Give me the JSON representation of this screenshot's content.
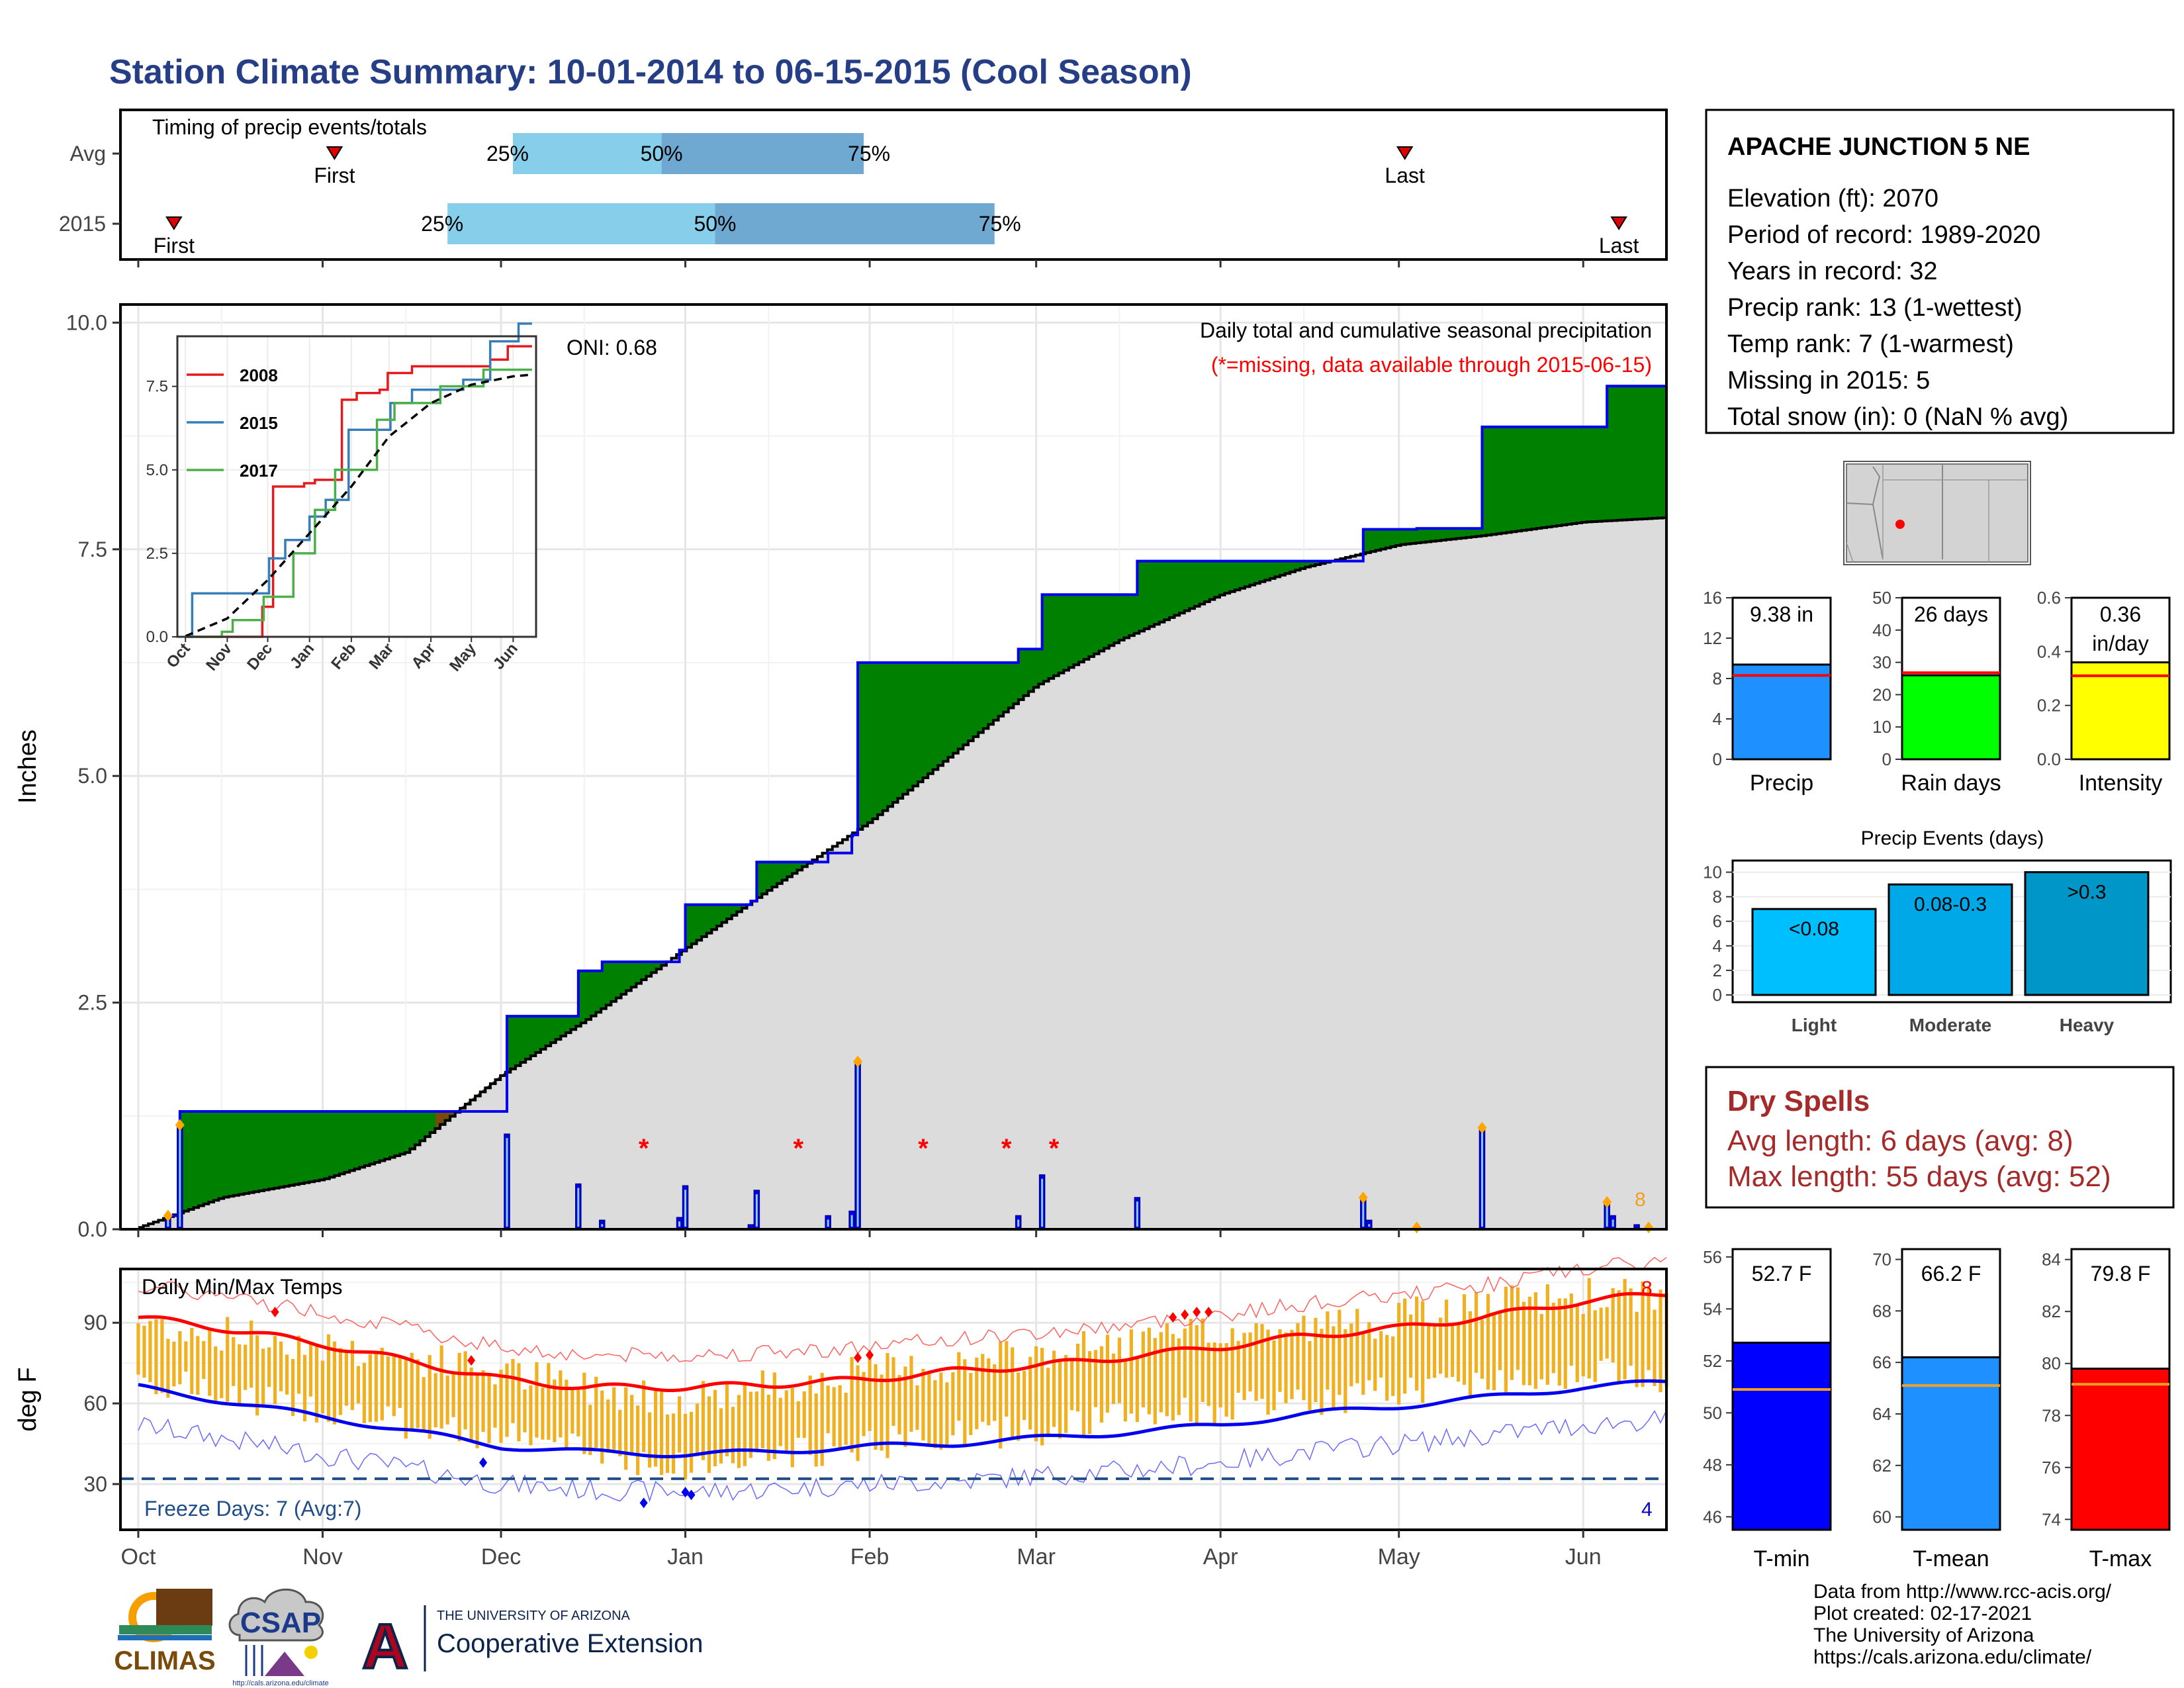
{
  "title": "Station Climate Summary: 10-01-2014 to 06-15-2015 (Cool Season)",
  "colors": {
    "title": "#263e85",
    "green": "#008000",
    "brown": "#7a4a0a",
    "blue_line": "#0000ee",
    "grey_fill": "#dcdcdc",
    "light_blue": "#87ceeb",
    "mid_blue": "#6fa8d0",
    "red": "#ff0000",
    "orange": "#f0b020",
    "precip_bar": "#1e90ff",
    "rain_bar": "#00ff00",
    "intensity_bar": "#ffff00",
    "event_light": "#00bfff",
    "event_moderate": "#00a8e8",
    "event_heavy": "#0096c7",
    "dry_red": "#a52a2a",
    "tmin": "#0000ff",
    "tmean": "#1e90ff",
    "tmax": "#ff0000"
  },
  "timing": {
    "label": "Timing of precip events/totals",
    "rows": [
      {
        "label": "Avg",
        "first_date": "2014-11-03",
        "last_date": "2015-05-02",
        "q25_date": "2014-12-03",
        "q50_date": "2014-12-28",
        "q75_date": "2015-01-31",
        "q25_label": "25%",
        "q50_label": "50%",
        "q75_label": "75%",
        "first_label": "First",
        "last_label": "Last"
      },
      {
        "label": "2015",
        "first_date": "2014-10-07",
        "last_date": "2015-06-07",
        "q25_date": "2014-11-22",
        "q50_date": "2015-01-06",
        "q75_date": "2015-02-22",
        "q25_label": "25%",
        "q50_label": "50%",
        "q75_label": "75%",
        "first_label": "First",
        "last_label": "Last"
      }
    ]
  },
  "station": {
    "name": "APACHE JUNCTION 5 NE",
    "lines": [
      "Elevation (ft): 2070",
      "Period of record: 1989-2020",
      "Years in record: 32",
      "Precip rank: 13 (1-wettest)",
      "Temp rank: 7 (1-warmest)",
      "Missing in 2015: 5",
      "Total snow (in): 0 (NaN % avg)"
    ]
  },
  "precip_panel": {
    "ylabel": "Inches",
    "oni": "ONI: 0.68",
    "note1": "Daily total and cumulative seasonal precipitation",
    "note2": "(*=missing, data available through 2015-06-15)",
    "orange_count": "8"
  },
  "inset": {
    "legend": [
      "2008",
      "2015",
      "2017"
    ]
  },
  "summary_bars": [
    {
      "name": "Precip",
      "value_label": "9.38 in",
      "value": 9.38,
      "avg": 8.3,
      "yticks": [
        0,
        4,
        8,
        12,
        16
      ],
      "ymax": 16
    },
    {
      "name": "Rain days",
      "value_label": "26 days",
      "value": 26,
      "avg": 26.8,
      "yticks": [
        0,
        10,
        20,
        30,
        40,
        50
      ],
      "ymax": 50
    },
    {
      "name": "Intensity",
      "value_label": "0.36",
      "value_label2": "in/day",
      "value": 0.36,
      "avg": 0.31,
      "yticks": [
        0.0,
        0.2,
        0.4,
        0.6
      ],
      "ymax": 0.6
    }
  ],
  "events": {
    "title": "Precip Events (days)",
    "bars": [
      {
        "label": "<0.08",
        "category": "Light",
        "value": 7
      },
      {
        "label": "0.08-0.3",
        "category": "Moderate",
        "value": 9
      },
      {
        "label": ">0.3",
        "category": "Heavy",
        "value": 10
      }
    ],
    "yticks": [
      0,
      2,
      4,
      6,
      8,
      10
    ]
  },
  "dry_spells": {
    "title": "Dry Spells",
    "avg": "Avg length: 6 days (avg: 8)",
    "max": "Max length: 55 days (avg: 52)"
  },
  "temp_panel": {
    "label": "Daily Min/Max Temps",
    "ylabel": "deg F",
    "freeze": "Freeze Days: 7 (Avg:7)",
    "count_hot": "8",
    "count_cold": "4",
    "yticks": [
      30,
      60,
      90
    ]
  },
  "temp_bars": [
    {
      "name": "T-min",
      "value_label": "52.7 F",
      "value": 52.7,
      "avg": 50.9,
      "ymin": 45.5,
      "ymax": 56.3,
      "yticks": [
        46,
        48,
        50,
        52,
        54,
        56
      ]
    },
    {
      "name": "T-mean",
      "value_label": "66.2 F",
      "value": 66.2,
      "avg": 65.1,
      "ymin": 59.5,
      "ymax": 70.4,
      "yticks": [
        60,
        62,
        64,
        66,
        68,
        70
      ]
    },
    {
      "name": "T-max",
      "value_label": "79.8 F",
      "value": 79.8,
      "avg": 79.2,
      "ymin": 73.6,
      "ymax": 84.4,
      "yticks": [
        74,
        76,
        78,
        80,
        82,
        84
      ]
    }
  ],
  "months": [
    "Oct",
    "Nov",
    "Dec",
    "Jan",
    "Feb",
    "Mar",
    "Apr",
    "May",
    "Jun"
  ],
  "logos": {
    "climas": "CLIMAS",
    "csap": "CSAP",
    "csap_url": "http://cals.arizona.edu/climate",
    "ua_small": "THE UNIVERSITY OF ARIZONA",
    "ua_big": "Cooperative Extension",
    "ua_letter": "A"
  },
  "footer": [
    "Data from http://www.rcc-acis.org/",
    "Plot created: 02-17-2021",
    "The University of Arizona",
    "https://cals.arizona.edu/climate/"
  ],
  "chart_data": [
    {
      "type": "area",
      "title": "Daily total and cumulative seasonal precipitation",
      "ylabel": "Inches",
      "ylim": [
        0,
        10.2
      ],
      "cumulative_2015": [
        [
          "2014-10-01",
          0.0
        ],
        [
          "2014-10-06",
          0.15
        ],
        [
          "2014-10-08",
          1.3
        ],
        [
          "2014-12-01",
          1.3
        ],
        [
          "2014-12-02",
          2.35
        ],
        [
          "2014-12-14",
          2.85
        ],
        [
          "2014-12-18",
          2.95
        ],
        [
          "2014-12-31",
          3.08
        ],
        [
          "2015-01-01",
          3.58
        ],
        [
          "2015-01-12",
          3.62
        ],
        [
          "2015-01-13",
          4.05
        ],
        [
          "2015-01-25",
          4.15
        ],
        [
          "2015-01-29",
          4.35
        ],
        [
          "2015-01-30",
          6.25
        ],
        [
          "2015-02-26",
          6.4
        ],
        [
          "2015-03-02",
          7.0
        ],
        [
          "2015-03-18",
          7.37
        ],
        [
          "2015-04-25",
          7.72
        ],
        [
          "2015-05-04",
          7.73
        ],
        [
          "2015-05-15",
          8.85
        ],
        [
          "2015-06-05",
          9.3
        ],
        [
          "2015-06-15",
          9.38
        ]
      ],
      "average_cumulative": [
        [
          "2014-10-01",
          0.02
        ],
        [
          "2014-10-15",
          0.35
        ],
        [
          "2014-11-01",
          0.55
        ],
        [
          "2014-11-15",
          0.85
        ],
        [
          "2014-12-01",
          1.7
        ],
        [
          "2014-12-15",
          2.3
        ],
        [
          "2015-01-01",
          3.1
        ],
        [
          "2015-01-15",
          3.75
        ],
        [
          "2015-02-01",
          4.5
        ],
        [
          "2015-02-15",
          5.25
        ],
        [
          "2015-03-01",
          6.0
        ],
        [
          "2015-03-15",
          6.5
        ],
        [
          "2015-04-01",
          7.0
        ],
        [
          "2015-04-15",
          7.3
        ],
        [
          "2015-05-01",
          7.55
        ],
        [
          "2015-05-15",
          7.65
        ],
        [
          "2015-06-01",
          7.8
        ],
        [
          "2015-06-15",
          7.85
        ]
      ],
      "daily_precip": [
        [
          "2014-10-06",
          0.15
        ],
        [
          "2014-10-08",
          1.15
        ],
        [
          "2014-12-02",
          1.05
        ],
        [
          "2014-12-14",
          0.5
        ],
        [
          "2014-12-18",
          0.1
        ],
        [
          "2014-12-31",
          0.13
        ],
        [
          "2015-01-01",
          0.48
        ],
        [
          "2015-01-12",
          0.05
        ],
        [
          "2015-01-13",
          0.43
        ],
        [
          "2015-01-25",
          0.15
        ],
        [
          "2015-01-29",
          0.2
        ],
        [
          "2015-01-30",
          1.85
        ],
        [
          "2015-02-26",
          0.15
        ],
        [
          "2015-03-02",
          0.6
        ],
        [
          "2015-03-18",
          0.35
        ],
        [
          "2015-04-25",
          0.35
        ],
        [
          "2015-04-26",
          0.1
        ],
        [
          "2015-05-15",
          1.12
        ],
        [
          "2015-06-05",
          0.3
        ],
        [
          "2015-06-06",
          0.15
        ],
        [
          "2015-06-10",
          0.05
        ]
      ],
      "missing_dates": [
        "2014-12-25",
        "2015-01-20",
        "2015-02-10",
        "2015-02-24",
        "2015-03-04"
      ]
    },
    {
      "type": "line",
      "title": "inset cumulative precipitation",
      "ylim": [
        0,
        9.0
      ],
      "series": [
        {
          "name": "2008",
          "values": [
            [
              "2007-10-01",
              0.0
            ],
            [
              "2007-11-20",
              0.0
            ],
            [
              "2007-11-27",
              0.9
            ],
            [
              "2007-12-05",
              4.5
            ],
            [
              "2007-12-28",
              4.6
            ],
            [
              "2008-01-05",
              4.7
            ],
            [
              "2008-01-25",
              7.1
            ],
            [
              "2008-02-05",
              7.3
            ],
            [
              "2008-02-22",
              7.4
            ],
            [
              "2008-02-28",
              7.9
            ],
            [
              "2008-03-18",
              8.1
            ],
            [
              "2008-05-15",
              8.3
            ],
            [
              "2008-05-28",
              8.7
            ],
            [
              "2008-06-15",
              8.7
            ]
          ]
        },
        {
          "name": "2015",
          "values": [
            [
              "2014-10-01",
              0.0
            ],
            [
              "2014-10-06",
              1.3
            ],
            [
              "2014-12-02",
              2.35
            ],
            [
              "2014-12-14",
              2.9
            ],
            [
              "2015-01-01",
              3.6
            ],
            [
              "2015-01-13",
              4.1
            ],
            [
              "2015-01-30",
              6.2
            ],
            [
              "2015-03-02",
              7.0
            ],
            [
              "2015-03-18",
              7.4
            ],
            [
              "2015-04-25",
              7.7
            ],
            [
              "2015-05-15",
              8.85
            ],
            [
              "2015-06-05",
              9.38
            ],
            [
              "2015-06-15",
              9.38
            ]
          ]
        },
        {
          "name": "2017",
          "values": [
            [
              "2016-10-01",
              0.0
            ],
            [
              "2016-10-28",
              0.15
            ],
            [
              "2016-11-05",
              0.5
            ],
            [
              "2016-11-28",
              1.2
            ],
            [
              "2016-12-20",
              2.5
            ],
            [
              "2017-01-05",
              3.8
            ],
            [
              "2017-01-20",
              5.0
            ],
            [
              "2017-02-20",
              6.5
            ],
            [
              "2017-03-05",
              7.0
            ],
            [
              "2017-04-08",
              7.5
            ],
            [
              "2017-05-10",
              8.0
            ],
            [
              "2017-06-15",
              8.0
            ]
          ]
        },
        {
          "name": "average",
          "values": [
            [
              "2014-10-01",
              0.02
            ],
            [
              "2014-11-01",
              0.55
            ],
            [
              "2014-12-01",
              1.7
            ],
            [
              "2015-01-01",
              3.1
            ],
            [
              "2015-02-01",
              4.5
            ],
            [
              "2015-03-01",
              6.0
            ],
            [
              "2015-04-01",
              7.0
            ],
            [
              "2015-05-01",
              7.55
            ],
            [
              "2015-06-01",
              7.8
            ],
            [
              "2015-06-15",
              7.85
            ]
          ]
        }
      ]
    },
    {
      "type": "bar",
      "title": "Daily Min/Max Temps",
      "ylabel": "deg F",
      "ylim": [
        13,
        110
      ],
      "avg_max": [
        [
          "2014-10-01",
          92
        ],
        [
          "2014-10-15",
          88
        ],
        [
          "2014-11-01",
          82
        ],
        [
          "2014-11-15",
          76
        ],
        [
          "2014-12-01",
          69
        ],
        [
          "2014-12-15",
          66
        ],
        [
          "2015-01-01",
          66
        ],
        [
          "2015-01-15",
          67
        ],
        [
          "2015-02-01",
          69
        ],
        [
          "2015-02-15",
          72
        ],
        [
          "2015-03-01",
          74
        ],
        [
          "2015-03-15",
          77
        ],
        [
          "2015-04-01",
          81
        ],
        [
          "2015-04-15",
          85
        ],
        [
          "2015-05-01",
          88
        ],
        [
          "2015-05-15",
          92
        ],
        [
          "2015-06-01",
          98
        ],
        [
          "2015-06-15",
          101
        ]
      ],
      "avg_min": [
        [
          "2014-10-01",
          66
        ],
        [
          "2014-10-15",
          61
        ],
        [
          "2014-11-01",
          55
        ],
        [
          "2014-11-15",
          50
        ],
        [
          "2014-12-01",
          44
        ],
        [
          "2014-12-15",
          42
        ],
        [
          "2015-01-01",
          41
        ],
        [
          "2015-01-15",
          42
        ],
        [
          "2015-02-01",
          44
        ],
        [
          "2015-02-15",
          45
        ],
        [
          "2015-03-01",
          47
        ],
        [
          "2015-03-15",
          49
        ],
        [
          "2015-04-01",
          52
        ],
        [
          "2015-04-15",
          56
        ],
        [
          "2015-05-01",
          59
        ],
        [
          "2015-05-15",
          62
        ],
        [
          "2015-06-01",
          66
        ],
        [
          "2015-06-15",
          68
        ]
      ],
      "max_range_approx": [
        [
          "2014-10-01",
          90,
          70
        ],
        [
          "2014-10-15",
          86,
          63
        ],
        [
          "2014-11-01",
          82,
          58
        ],
        [
          "2014-11-15",
          77,
          52
        ],
        [
          "2014-12-01",
          72,
          48
        ],
        [
          "2014-12-15",
          66,
          43
        ],
        [
          "2015-01-01",
          62,
          36
        ],
        [
          "2015-01-15",
          66,
          40
        ],
        [
          "2015-02-01",
          72,
          45
        ],
        [
          "2015-02-15",
          74,
          48
        ],
        [
          "2015-03-01",
          78,
          50
        ],
        [
          "2015-03-15",
          82,
          55
        ],
        [
          "2015-04-01",
          86,
          58
        ],
        [
          "2015-04-15",
          88,
          60
        ],
        [
          "2015-05-01",
          92,
          65
        ],
        [
          "2015-05-15",
          96,
          68
        ],
        [
          "2015-06-01",
          100,
          72
        ],
        [
          "2015-06-15",
          100,
          70
        ]
      ],
      "freeze_threshold": 32
    }
  ]
}
